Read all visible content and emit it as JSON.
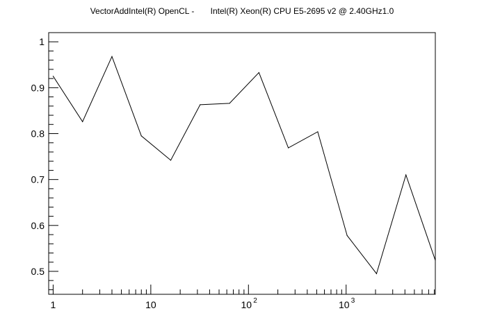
{
  "chart_data": {
    "type": "line",
    "title": "VectorAddIntel(R) OpenCL -       Intel(R) Xeon(R) CPU E5-2695 v2 @ 2.40GHz1.0",
    "xlabel": "",
    "ylabel": "",
    "x_scale": "log",
    "xlim": [
      0.9,
      8192
    ],
    "ylim": [
      0.45,
      1.02
    ],
    "grid": false,
    "legend": "none",
    "line_color": "#000000",
    "x_tick_labels": [
      {
        "value": 1,
        "base": "1",
        "exp": ""
      },
      {
        "value": 10,
        "base": "10",
        "exp": ""
      },
      {
        "value": 100,
        "base": "10",
        "exp": "2"
      },
      {
        "value": 1000,
        "base": "10",
        "exp": "3"
      }
    ],
    "y_tick_labels": [
      "0.5",
      "0.6",
      "0.7",
      "0.8",
      "0.9",
      "1"
    ],
    "y_ticks": [
      0.5,
      0.6,
      0.7,
      0.8,
      0.9,
      1.0
    ],
    "series": [
      {
        "x": [
          1,
          2,
          4,
          8,
          16,
          32,
          64,
          128,
          256,
          512,
          1024,
          2048,
          4096,
          8192
        ],
        "values": [
          0.925,
          0.826,
          0.968,
          0.795,
          0.742,
          0.863,
          0.866,
          0.933,
          0.769,
          0.804,
          0.578,
          0.495,
          0.71,
          0.524
        ]
      }
    ]
  }
}
